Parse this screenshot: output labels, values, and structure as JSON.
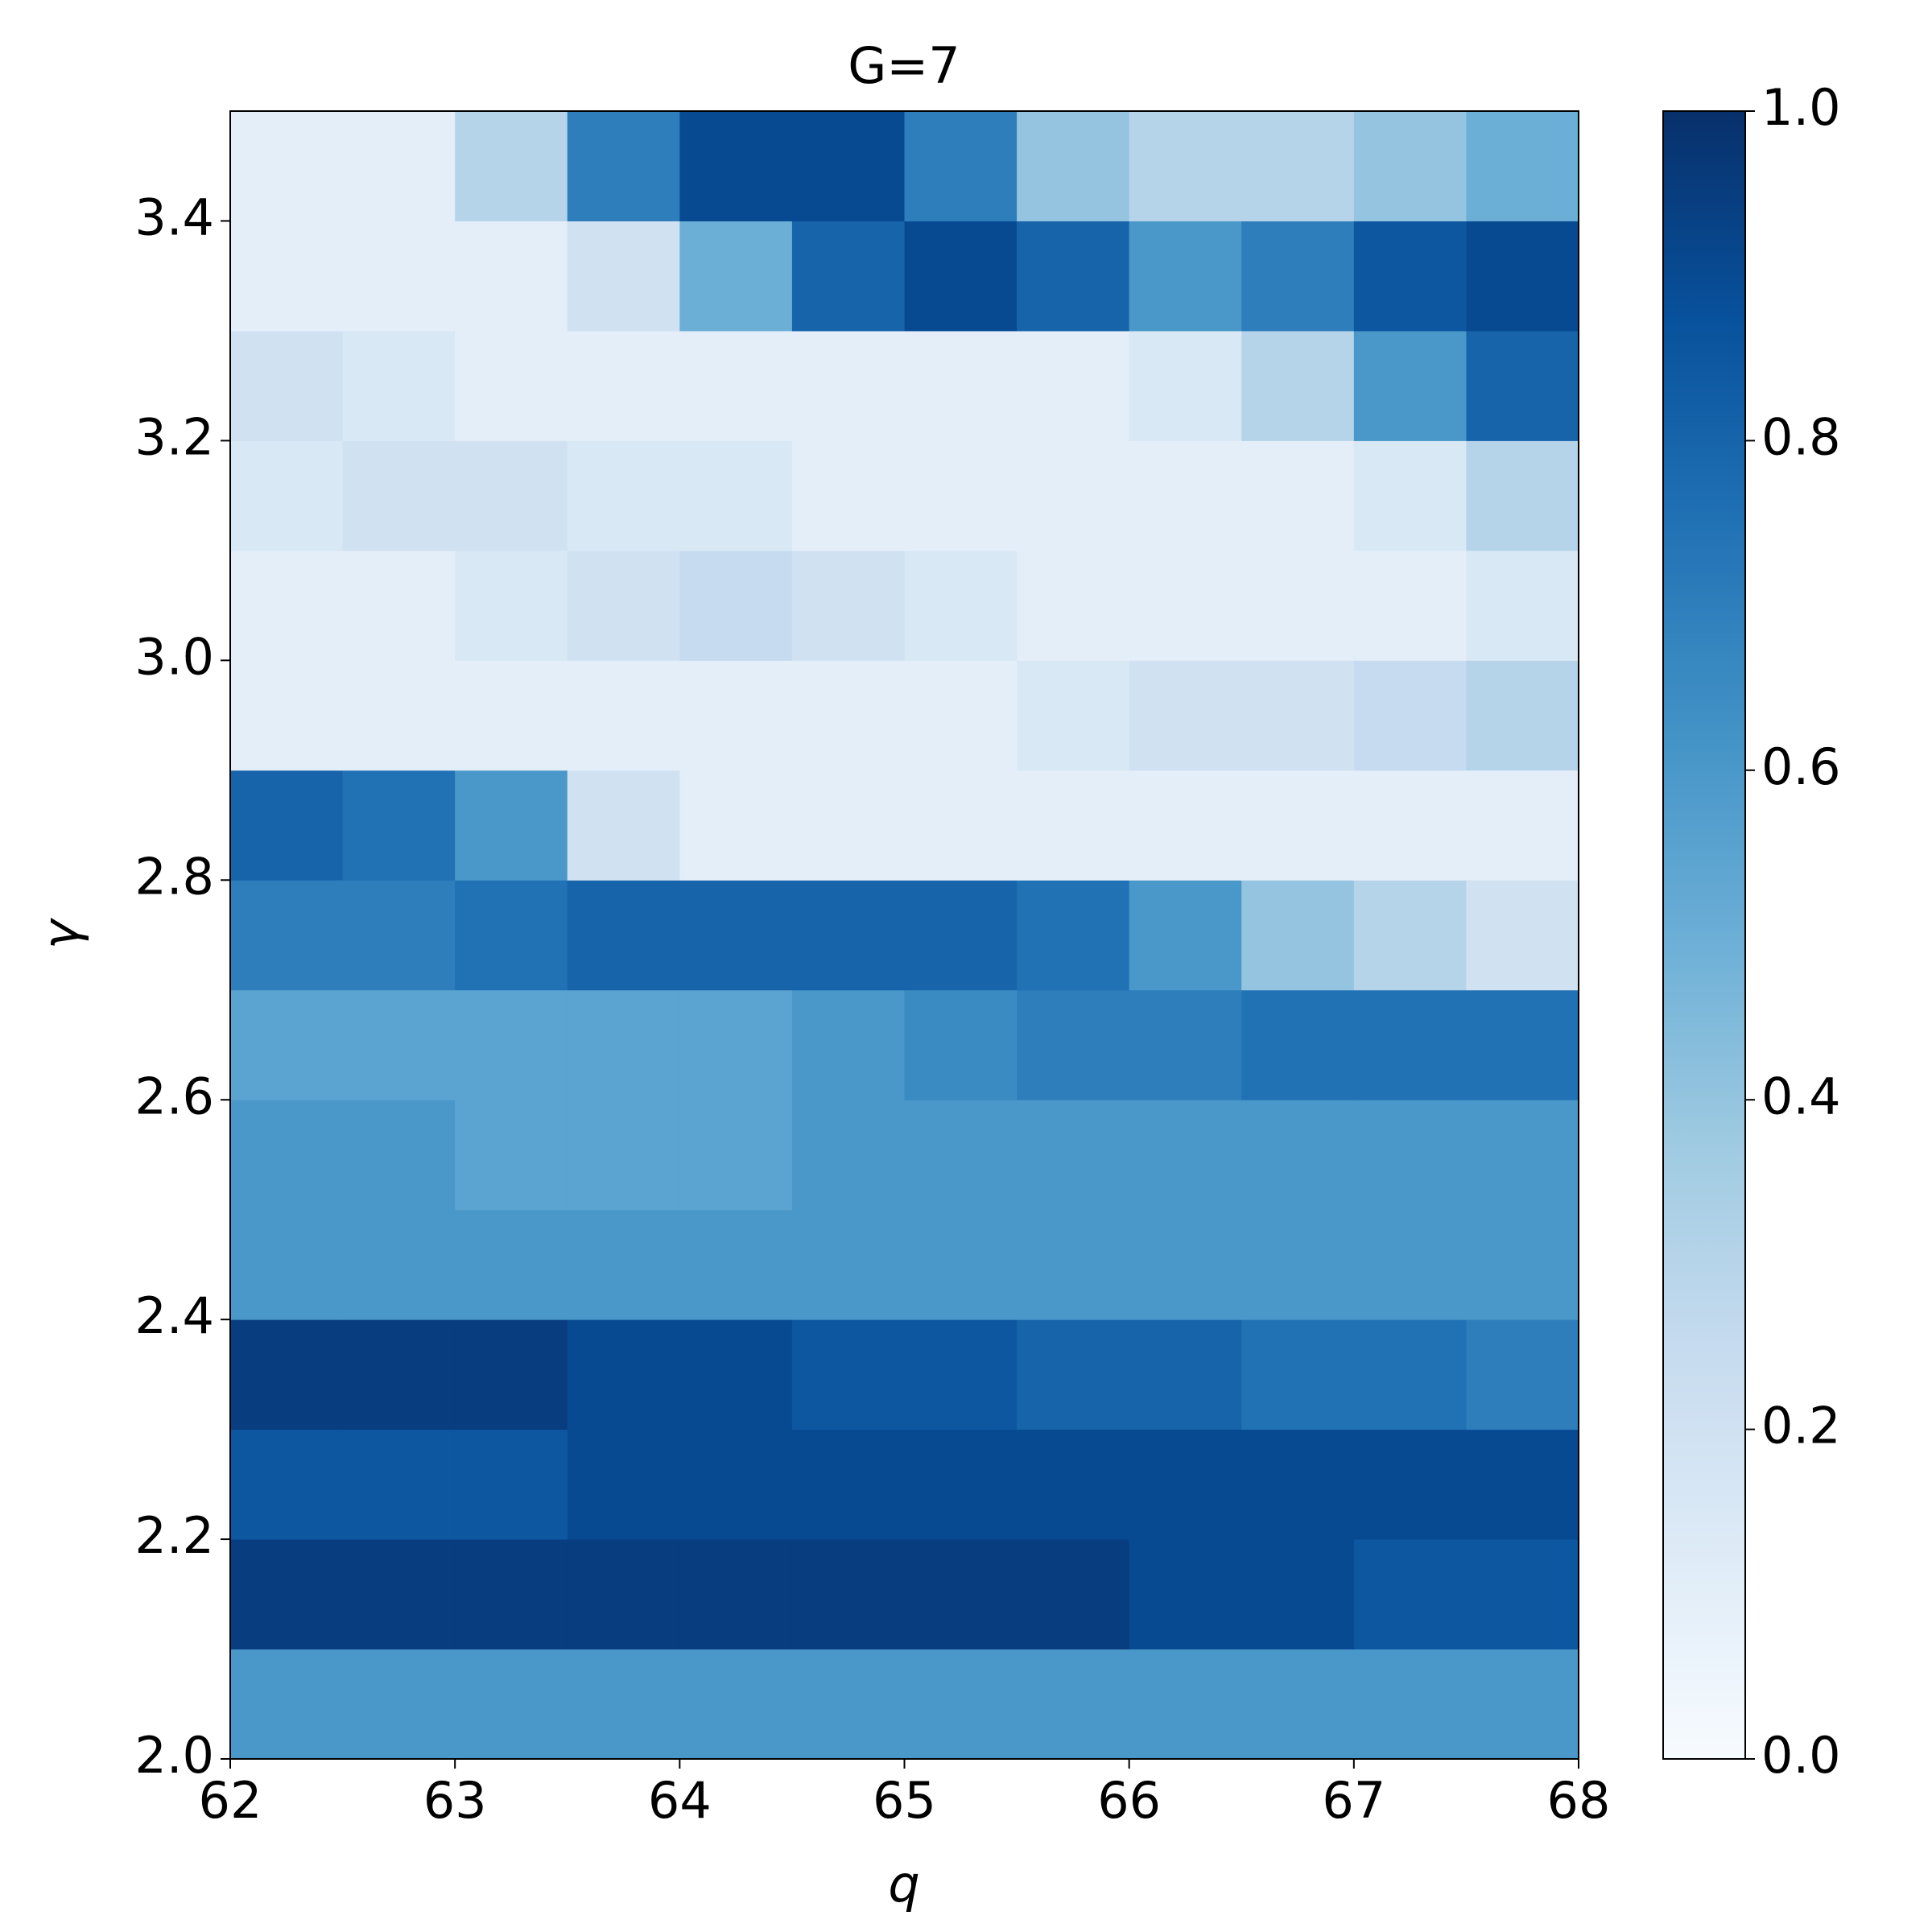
{
  "chart_data": {
    "type": "heatmap",
    "title": "G=7",
    "xlabel": "q",
    "ylabel": "γ",
    "x": [
      62.25,
      62.75,
      63.25,
      63.75,
      64.25,
      64.75,
      65.25,
      65.75,
      66.25,
      66.75,
      67.25,
      67.75
    ],
    "y": [
      2.05,
      2.15,
      2.25,
      2.35,
      2.45,
      2.55,
      2.65,
      2.75,
      2.85,
      2.95,
      3.05,
      3.15,
      3.25,
      3.35,
      3.45
    ],
    "z": [
      [
        0.6,
        0.6,
        0.6,
        0.6,
        0.6,
        0.6,
        0.6,
        0.6,
        0.6,
        0.6,
        0.6,
        0.6
      ],
      [
        0.95,
        0.95,
        0.95,
        0.95,
        0.95,
        0.95,
        0.95,
        0.95,
        0.9,
        0.9,
        0.85,
        0.85
      ],
      [
        0.85,
        0.85,
        0.85,
        0.9,
        0.9,
        0.9,
        0.9,
        0.9,
        0.9,
        0.9,
        0.9,
        0.9
      ],
      [
        0.95,
        0.95,
        0.95,
        0.9,
        0.9,
        0.85,
        0.85,
        0.8,
        0.8,
        0.75,
        0.75,
        0.7
      ],
      [
        0.6,
        0.6,
        0.6,
        0.6,
        0.6,
        0.6,
        0.6,
        0.6,
        0.6,
        0.6,
        0.6,
        0.6
      ],
      [
        0.6,
        0.6,
        0.55,
        0.55,
        0.55,
        0.6,
        0.6,
        0.6,
        0.6,
        0.6,
        0.6,
        0.6
      ],
      [
        0.55,
        0.55,
        0.55,
        0.55,
        0.55,
        0.6,
        0.65,
        0.7,
        0.7,
        0.75,
        0.75,
        0.75
      ],
      [
        0.7,
        0.7,
        0.75,
        0.8,
        0.8,
        0.8,
        0.8,
        0.75,
        0.6,
        0.4,
        0.3,
        0.2
      ],
      [
        0.8,
        0.75,
        0.6,
        0.2,
        0.1,
        0.1,
        0.1,
        0.1,
        0.1,
        0.1,
        0.1,
        0.1
      ],
      [
        0.1,
        0.1,
        0.1,
        0.1,
        0.1,
        0.1,
        0.1,
        0.15,
        0.2,
        0.2,
        0.25,
        0.3
      ],
      [
        0.1,
        0.1,
        0.15,
        0.2,
        0.25,
        0.2,
        0.15,
        0.1,
        0.1,
        0.1,
        0.1,
        0.15
      ],
      [
        0.15,
        0.2,
        0.2,
        0.15,
        0.15,
        0.1,
        0.1,
        0.1,
        0.1,
        0.1,
        0.15,
        0.3
      ],
      [
        0.2,
        0.15,
        0.1,
        0.1,
        0.1,
        0.1,
        0.1,
        0.1,
        0.15,
        0.3,
        0.6,
        0.8
      ],
      [
        0.1,
        0.1,
        0.1,
        0.2,
        0.5,
        0.8,
        0.9,
        0.8,
        0.6,
        0.7,
        0.85,
        0.9
      ],
      [
        0.1,
        0.1,
        0.3,
        0.7,
        0.9,
        0.9,
        0.7,
        0.4,
        0.3,
        0.3,
        0.4,
        0.5
      ]
    ],
    "xlim": [
      62,
      68
    ],
    "ylim": [
      2.0,
      3.5
    ],
    "xticks": [
      62,
      63,
      64,
      65,
      66,
      67,
      68
    ],
    "yticks": [
      {
        "value": 2.0,
        "label": "2.0"
      },
      {
        "value": 2.2,
        "label": "2.2"
      },
      {
        "value": 2.4,
        "label": "2.4"
      },
      {
        "value": 2.6,
        "label": "2.6"
      },
      {
        "value": 2.8,
        "label": "2.8"
      },
      {
        "value": 3.0,
        "label": "3.0"
      },
      {
        "value": 3.2,
        "label": "3.2"
      },
      {
        "value": 3.4,
        "label": "3.4"
      }
    ],
    "clim": [
      0,
      1
    ],
    "cticks": [
      {
        "value": 0,
        "label": "0.0"
      },
      {
        "value": 0.2,
        "label": "0.2"
      },
      {
        "value": 0.4,
        "label": "0.4"
      },
      {
        "value": 0.6,
        "label": "0.6"
      },
      {
        "value": 0.8,
        "label": "0.8"
      },
      {
        "value": 1,
        "label": "1.0"
      }
    ],
    "colormap": [
      "#f7fbff",
      "#deebf7",
      "#c6dbef",
      "#9ecae1",
      "#6baed6",
      "#4292c6",
      "#2171b5",
      "#08519c",
      "#08306b"
    ]
  }
}
